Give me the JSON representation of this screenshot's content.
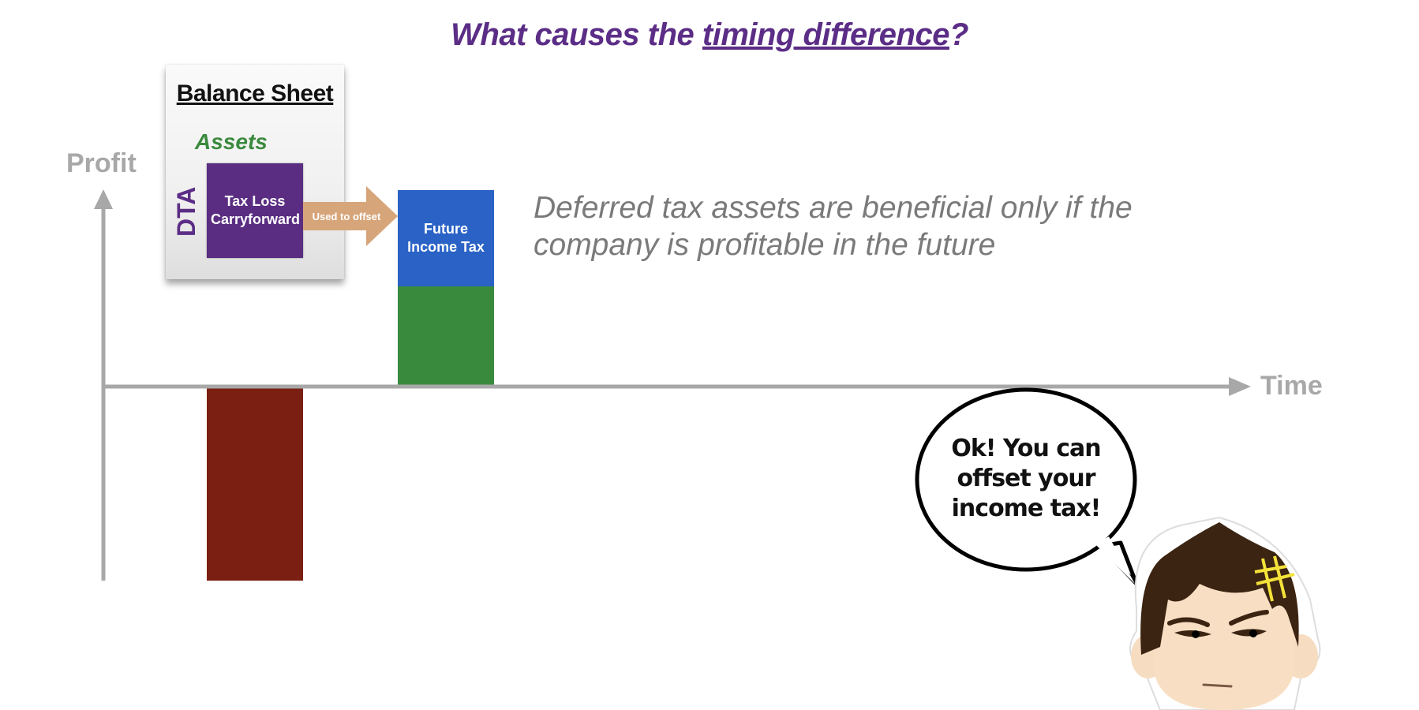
{
  "title": {
    "prefix": "What causes the ",
    "emphasis": "timing difference",
    "suffix": "?"
  },
  "axes": {
    "y_label": "Profit",
    "x_label": "Time"
  },
  "balance_sheet": {
    "title": "Balance Sheet",
    "section": "Assets",
    "dta_label": "DTA",
    "dta_item": "Tax Loss Carryforward"
  },
  "arrow_label": "Used to offset",
  "future_tax_label": "Future Income Tax",
  "statement": "Deferred tax assets are beneficial only if the company is profitable in the future",
  "speech_bubble": "Ok! You can offset your income tax!",
  "colors": {
    "title": "#5b2d86",
    "loss_bar": "#7a1f12",
    "profit_bar": "#3a8a3e",
    "future_tax": "#2a63c5",
    "dta": "#5a2d82",
    "arrow": "#d7a57a",
    "axis": "#a8a8a8"
  }
}
